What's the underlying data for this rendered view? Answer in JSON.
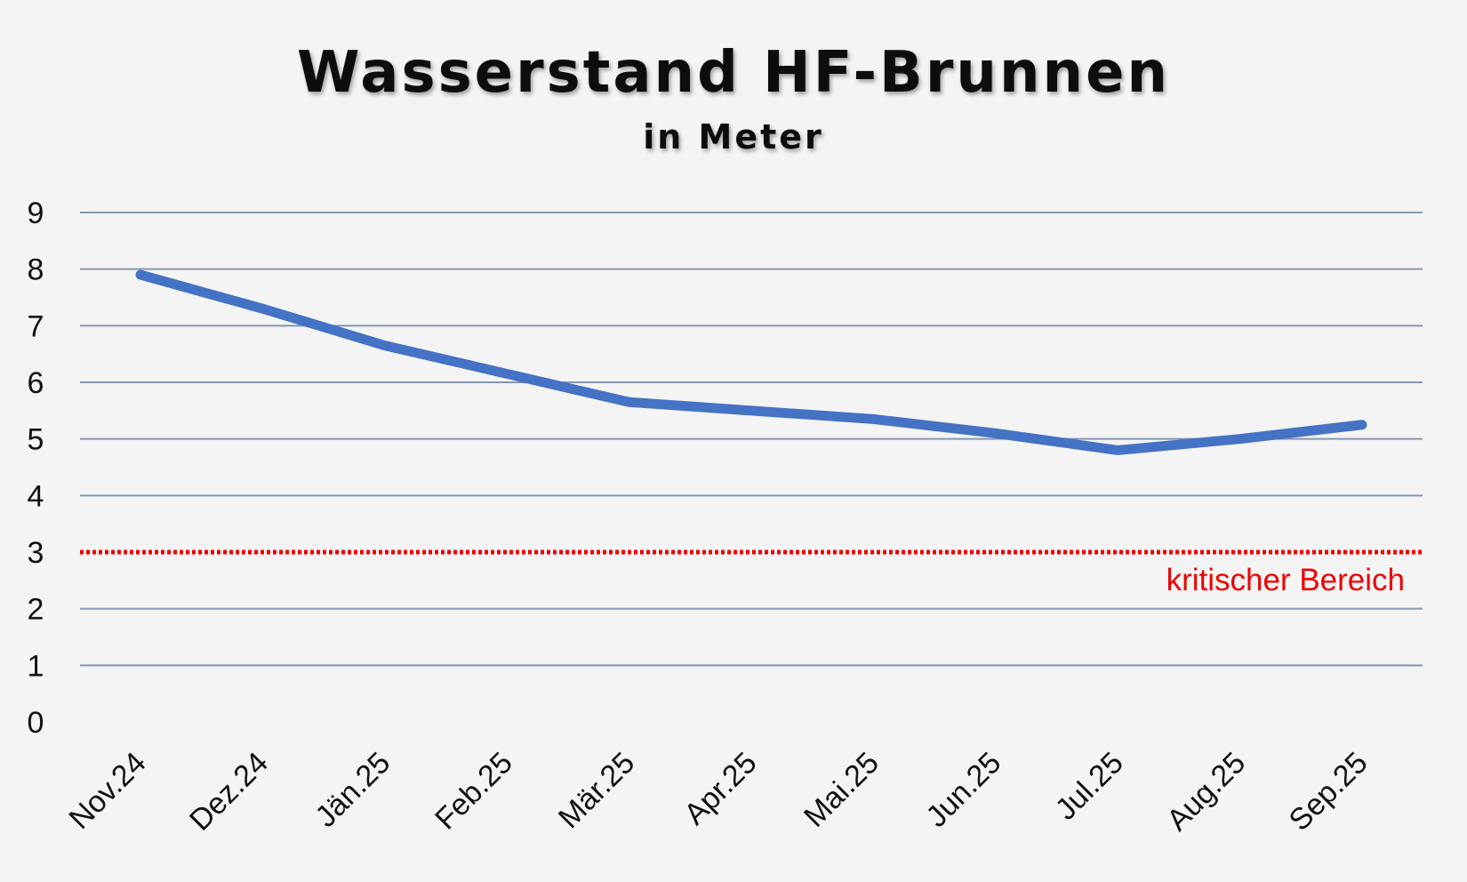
{
  "chart_data": {
    "type": "line",
    "title": "Wasserstand HF-Brunnen",
    "subtitle": "in Meter",
    "xlabel": "",
    "ylabel": "",
    "categories": [
      "Nov.24",
      "Dez.24",
      "Jän.25",
      "Feb.25",
      "Mär.25",
      "Apr.25",
      "Mai.25",
      "Jun.25",
      "Jul.25",
      "Aug.25",
      "Sep.25"
    ],
    "series": [
      {
        "values": [
          7.9,
          7.3,
          6.65,
          6.15,
          5.65,
          5.5,
          5.35,
          5.1,
          4.8,
          5.0,
          5.25
        ]
      }
    ],
    "yticks": [
      0,
      1,
      2,
      3,
      4,
      5,
      6,
      7,
      8,
      9
    ],
    "ylim": [
      0,
      9
    ],
    "grid": true,
    "legend": "none",
    "reference_line": {
      "value": 3,
      "label": "kritischer Bereich",
      "color": "#ee0000",
      "style": "dotted"
    },
    "colors": {
      "series": "#4472c4",
      "grid": "#8497b0",
      "background": "#f4f4f4"
    }
  }
}
